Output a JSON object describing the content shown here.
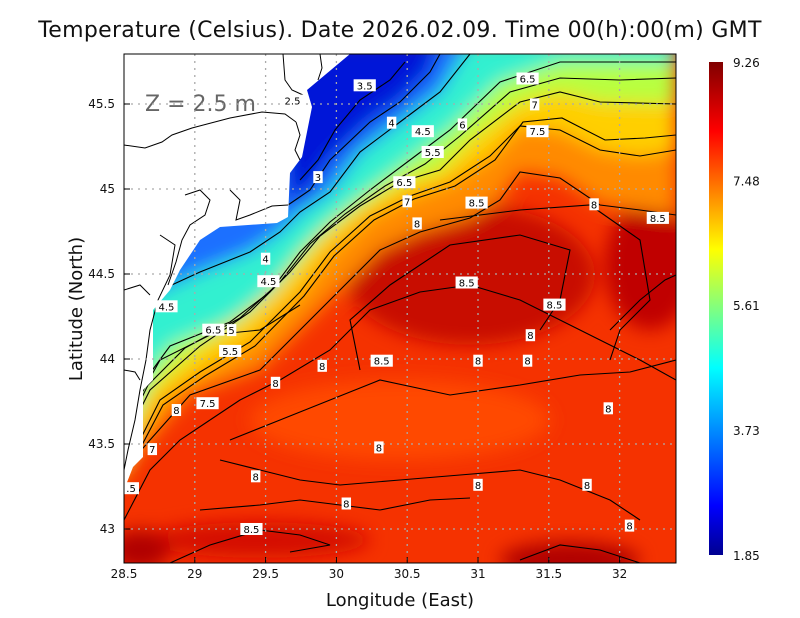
{
  "title": "Temperature (Celsius). Date 2026.02.09. Time 00(h):00(m) GMT",
  "depth_label": "Z = 2.5 m",
  "chart_data": {
    "type": "heatmap",
    "variable": "Temperature (Celsius)",
    "date": "2026.02.09",
    "time": "00(h):00(m) GMT",
    "xlabel": "Longitude (East)",
    "ylabel": "Latitude (North)",
    "xlim": [
      28.5,
      32.4
    ],
    "ylim": [
      42.8,
      45.8
    ],
    "xticks": [
      "28.5",
      "29",
      "29.5",
      "30",
      "30.5",
      "31",
      "31.5",
      "32"
    ],
    "yticks": [
      "43",
      "43.5",
      "44",
      "44.5",
      "45",
      "45.5"
    ],
    "grid": true,
    "colorbar": {
      "min": 1.85,
      "max": 9.26,
      "tick_labels": [
        "9.26",
        "7.48",
        "5.61",
        "3.73",
        "1.85"
      ],
      "colormap": [
        "#000090",
        "#0000ff",
        "#00ffff",
        "#80ff80",
        "#ffff00",
        "#ff0000",
        "#800000"
      ]
    },
    "contour_interval": 0.5,
    "contour_labels": [
      {
        "lon": 29.69,
        "lat": 45.52,
        "text": "2.5"
      },
      {
        "lon": 30.2,
        "lat": 45.61,
        "text": "3.5"
      },
      {
        "lon": 30.39,
        "lat": 45.39,
        "text": "4"
      },
      {
        "lon": 30.61,
        "lat": 45.34,
        "text": "4.5"
      },
      {
        "lon": 30.68,
        "lat": 45.3,
        "text": "5.5"
      },
      {
        "lon": 30.89,
        "lat": 45.38,
        "text": "6"
      },
      {
        "lon": 31.35,
        "lat": 45.65,
        "text": "6.5"
      },
      {
        "lon": 31.4,
        "lat": 45.58,
        "text": "7"
      },
      {
        "lon": 31.42,
        "lat": 45.34,
        "text": "7.5"
      },
      {
        "lon": 29.87,
        "lat": 45.07,
        "text": "3"
      },
      {
        "lon": 30.48,
        "lat": 45.04,
        "text": "6.5"
      },
      {
        "lon": 30.5,
        "lat": 45.01,
        "text": "7"
      },
      {
        "lon": 30.57,
        "lat": 44.88,
        "text": "8"
      },
      {
        "lon": 30.99,
        "lat": 44.92,
        "text": "8.5"
      },
      {
        "lon": 31.82,
        "lat": 44.91,
        "text": "8"
      },
      {
        "lon": 32.27,
        "lat": 44.83,
        "text": "8.5"
      },
      {
        "lon": 29.5,
        "lat": 44.59,
        "text": "4"
      },
      {
        "lon": 29.52,
        "lat": 44.54,
        "text": "4.5"
      },
      {
        "lon": 30.92,
        "lat": 44.45,
        "text": "8.5"
      },
      {
        "lon": 28.8,
        "lat": 44.31,
        "text": "4.5"
      },
      {
        "lon": 31.54,
        "lat": 44.32,
        "text": "8.5"
      },
      {
        "lon": 29.26,
        "lat": 44.17,
        "text": "5"
      },
      {
        "lon": 29.25,
        "lat": 44.13,
        "text": "5.5"
      },
      {
        "lon": 29.23,
        "lat": 44.09,
        "text": "6.5"
      },
      {
        "lon": 31.37,
        "lat": 44.14,
        "text": "8"
      },
      {
        "lon": 30.32,
        "lat": 43.99,
        "text": "8.5"
      },
      {
        "lon": 31.0,
        "lat": 43.99,
        "text": "8"
      },
      {
        "lon": 31.35,
        "lat": 43.99,
        "text": "8"
      },
      {
        "lon": 29.9,
        "lat": 43.96,
        "text": "8"
      },
      {
        "lon": 29.57,
        "lat": 43.86,
        "text": "8"
      },
      {
        "lon": 29.09,
        "lat": 43.74,
        "text": "7.5"
      },
      {
        "lon": 28.87,
        "lat": 43.7,
        "text": "8"
      },
      {
        "lon": 31.92,
        "lat": 43.71,
        "text": "8"
      },
      {
        "lon": 28.7,
        "lat": 43.47,
        "text": "7"
      },
      {
        "lon": 30.3,
        "lat": 43.48,
        "text": "8"
      },
      {
        "lon": 28.55,
        "lat": 43.24,
        "text": ".5"
      },
      {
        "lon": 29.43,
        "lat": 43.31,
        "text": "8"
      },
      {
        "lon": 31.0,
        "lat": 43.26,
        "text": "8"
      },
      {
        "lon": 31.77,
        "lat": 43.26,
        "text": "8"
      },
      {
        "lon": 30.07,
        "lat": 43.15,
        "text": "8"
      },
      {
        "lon": 29.4,
        "lat": 43.0,
        "text": "8.5"
      },
      {
        "lon": 32.07,
        "lat": 43.02,
        "text": "8"
      }
    ]
  }
}
